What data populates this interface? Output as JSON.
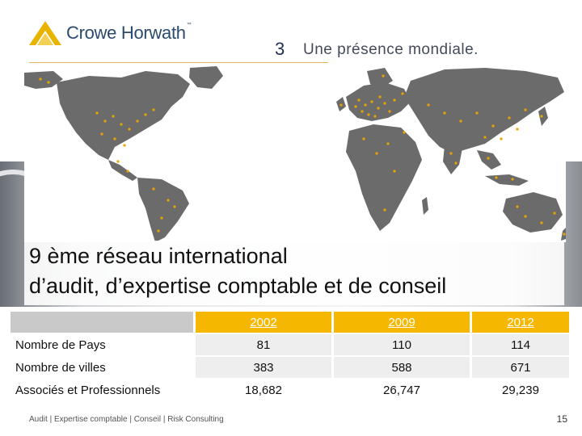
{
  "logo": {
    "brand": "Crowe Horwath",
    "tm": "™"
  },
  "title": {
    "number": "3",
    "text": "Une présence mondiale."
  },
  "tagline": {
    "line1": "9 ème réseau international",
    "line2": "d’audit, d’expertise comptable et de conseil"
  },
  "table": {
    "years": [
      "2002",
      "2009",
      "2012"
    ],
    "rows": [
      {
        "label": "Nombre de Pays",
        "values": [
          "81",
          "110",
          "114"
        ]
      },
      {
        "label": "Nombre de villes",
        "values": [
          "383",
          "588",
          "671"
        ]
      },
      {
        "label": "Associés et Professionnels",
        "values": [
          "18,682",
          "26,747",
          "29,239"
        ]
      }
    ]
  },
  "footer": {
    "text": "Audit | Expertise comptable | Conseil | Risk Consulting",
    "page": "15"
  },
  "colors": {
    "brand_gold": "#f5b700",
    "brand_navy": "#2b4a6f",
    "map_land": "#6b6b6b",
    "office_dot": "#e8a500"
  }
}
